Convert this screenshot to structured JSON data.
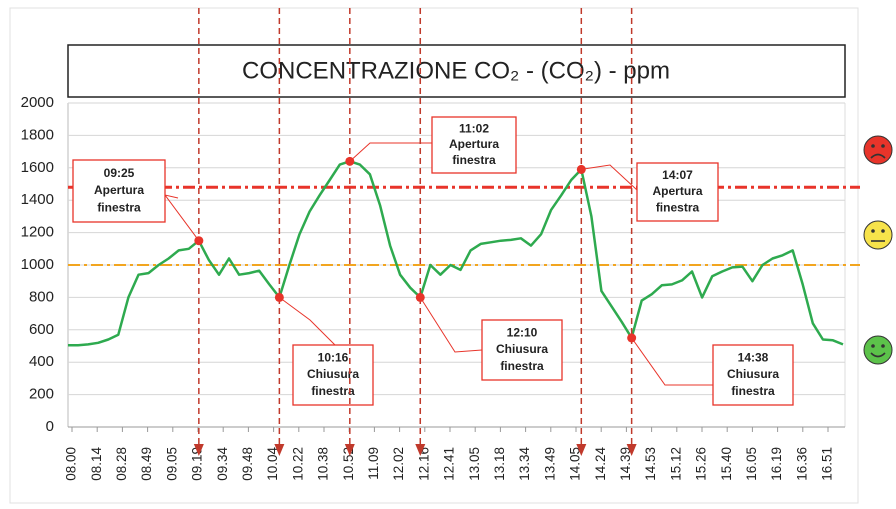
{
  "chart_data": {
    "type": "line",
    "title": "CONCENTRAZIONE CO₂ - (CO₂) - ppm",
    "x_labels": [
      "08.00",
      "08.14",
      "08.28",
      "08.49",
      "09.05",
      "09.19",
      "09.34",
      "09.48",
      "10.04",
      "10.22",
      "10.38",
      "10.52",
      "11.09",
      "12.02",
      "12.16",
      "12.41",
      "13.05",
      "13.18",
      "13.34",
      "13.49",
      "14.05",
      "14.24",
      "14.39",
      "14.53",
      "15.12",
      "15.26",
      "15.40",
      "16.05",
      "16.19",
      "16.36",
      "16.51"
    ],
    "series": [
      {
        "color": "#2eaa4f",
        "values": [
          505,
          505,
          510,
          520,
          540,
          570,
          800,
          940,
          950,
          1000,
          1040,
          1090,
          1100,
          1150,
          1030,
          940,
          1040,
          940,
          950,
          965,
          880,
          800,
          1000,
          1190,
          1330,
          1430,
          1525,
          1620,
          1640,
          1620,
          1560,
          1370,
          1120,
          940,
          860,
          800,
          1000,
          940,
          1000,
          970,
          1090,
          1130,
          1140,
          1150,
          1155,
          1165,
          1120,
          1190,
          1340,
          1430,
          1525,
          1590,
          1300,
          840,
          745,
          650,
          550,
          780,
          820,
          875,
          880,
          905,
          960,
          800,
          930,
          960,
          985,
          990,
          900,
          1000,
          1040,
          1060,
          1090,
          880,
          640,
          540,
          535,
          510
        ]
      }
    ],
    "ylim": [
      0,
      2000
    ],
    "yticks": [
      0,
      200,
      400,
      600,
      800,
      1000,
      1200,
      1400,
      1600,
      1800,
      2000
    ],
    "grid": true,
    "reference_lines": [
      {
        "value": 1480,
        "color": "#e8342a"
      },
      {
        "value": 1000,
        "color": "#f2a51f"
      }
    ],
    "annotations": [
      {
        "time": "09:25",
        "lines": [
          "Apertura",
          "finestra"
        ]
      },
      {
        "time": "10:16",
        "lines": [
          "Chiusura",
          "finestra"
        ]
      },
      {
        "time": "11:02",
        "lines": [
          "Apertura",
          "finestra"
        ]
      },
      {
        "time": "12:10",
        "lines": [
          "Chiusura",
          "finestra"
        ]
      },
      {
        "time": "14:07",
        "lines": [
          "Apertura",
          "finestra"
        ]
      },
      {
        "time": "14:38",
        "lines": [
          "Chiusura",
          "finestra"
        ]
      }
    ]
  }
}
